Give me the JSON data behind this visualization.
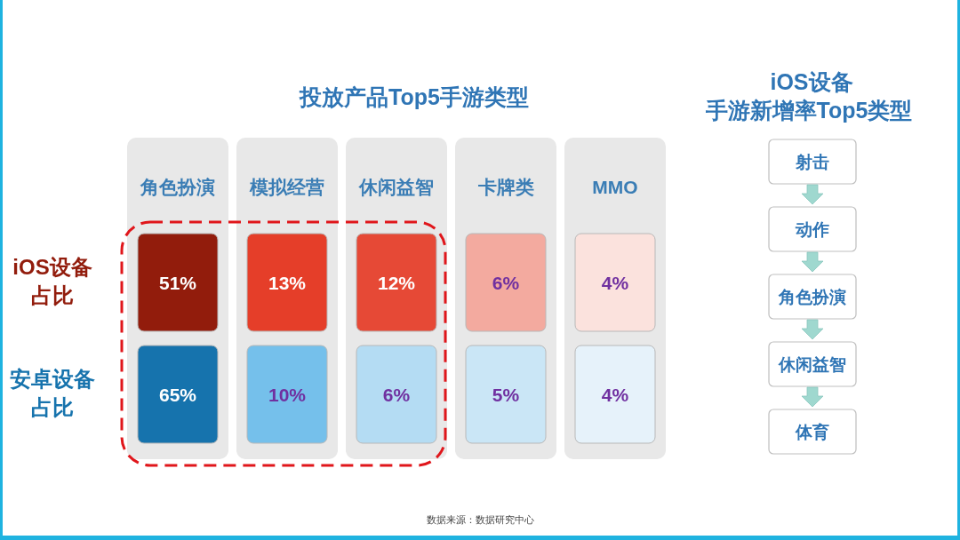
{
  "chart_data": [
    {
      "type": "heatmap",
      "title": "投放产品Top5手游类型",
      "categories": [
        "角色扮演",
        "模拟经营",
        "休闲益智",
        "卡牌类",
        "MMO"
      ],
      "y_categories": [
        "iOS设备占比",
        "安卓设备占比"
      ],
      "cells": [
        [
          51,
          13,
          12,
          6,
          4
        ],
        [
          65,
          10,
          6,
          5,
          4
        ]
      ],
      "cell_labels": [
        [
          "51%",
          "13%",
          "12%",
          "6%",
          "4%"
        ],
        [
          "65%",
          "10%",
          "6%",
          "5%",
          "4%"
        ]
      ],
      "colors": [
        [
          "#fbe2dd",
          "#e3311b",
          "#921c0c"
        ],
        [
          "#e6f2fa",
          "#3aa6e3",
          "#1673ad"
        ]
      ],
      "annotations": [
        "数据来源：数据研究中心"
      ]
    },
    {
      "type": "other",
      "title": "iOS设备",
      "subtitle": "手游新增率Top5类型",
      "categories": [
        "射击",
        "动作",
        "角色扮演",
        "休闲益智",
        "体育"
      ]
    }
  ]
}
